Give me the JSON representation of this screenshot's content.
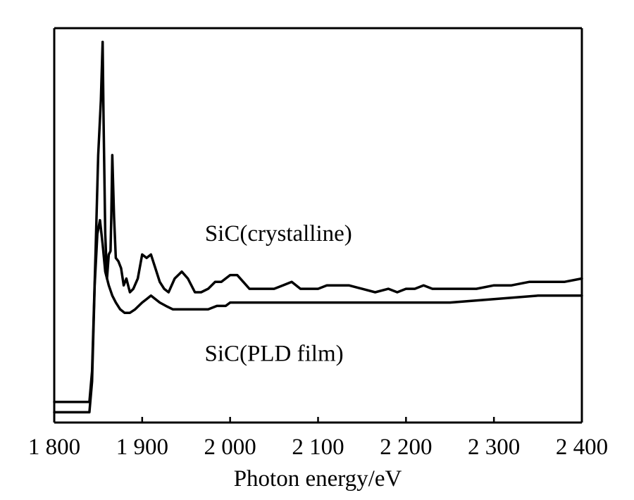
{
  "chart_data": {
    "type": "line",
    "xlabel": "Photon energy/eV",
    "ylabel": "",
    "xlim": [
      1800,
      2400
    ],
    "ylim": [
      0,
      1.15
    ],
    "xticks": [
      1800,
      1900,
      2000,
      2100,
      2200,
      2300,
      2400
    ],
    "xtick_labels": [
      "1 800",
      "1 900",
      "2 000",
      "2 100",
      "2 200",
      "2 300",
      "2 400"
    ],
    "grid": false,
    "legend": "none",
    "series": [
      {
        "name": "SiC(crystalline)",
        "color": "#000000",
        "x": [
          1800,
          1840,
          1843,
          1847,
          1850,
          1853,
          1855,
          1856,
          1858,
          1860,
          1862,
          1864,
          1865,
          1866,
          1868,
          1870,
          1873,
          1876,
          1879,
          1882,
          1886,
          1890,
          1895,
          1900,
          1905,
          1910,
          1915,
          1920,
          1925,
          1930,
          1937,
          1945,
          1952,
          1960,
          1967,
          1975,
          1983,
          1990,
          2000,
          2008,
          2015,
          2022,
          2030,
          2040,
          2050,
          2060,
          2070,
          2080,
          2090,
          2100,
          2110,
          2120,
          2135,
          2150,
          2165,
          2180,
          2190,
          2200,
          2210,
          2220,
          2230,
          2240,
          2260,
          2280,
          2300,
          2320,
          2340,
          2360,
          2380,
          2400
        ],
        "y": [
          0.06,
          0.06,
          0.15,
          0.5,
          0.78,
          0.94,
          1.11,
          0.9,
          0.55,
          0.42,
          0.49,
          0.5,
          0.61,
          0.78,
          0.6,
          0.48,
          0.47,
          0.45,
          0.4,
          0.42,
          0.38,
          0.39,
          0.42,
          0.49,
          0.48,
          0.49,
          0.45,
          0.41,
          0.39,
          0.38,
          0.42,
          0.44,
          0.42,
          0.38,
          0.38,
          0.39,
          0.41,
          0.41,
          0.43,
          0.43,
          0.41,
          0.39,
          0.39,
          0.39,
          0.39,
          0.4,
          0.41,
          0.39,
          0.39,
          0.39,
          0.4,
          0.4,
          0.4,
          0.39,
          0.38,
          0.39,
          0.38,
          0.39,
          0.39,
          0.4,
          0.39,
          0.39,
          0.39,
          0.39,
          0.4,
          0.4,
          0.41,
          0.41,
          0.41,
          0.42
        ]
      },
      {
        "name": "SiC(PLD film)",
        "color": "#000000",
        "x": [
          1800,
          1840,
          1843,
          1846,
          1849,
          1852,
          1855,
          1858,
          1862,
          1866,
          1870,
          1875,
          1880,
          1886,
          1892,
          1900,
          1905,
          1910,
          1915,
          1920,
          1927,
          1935,
          1945,
          1955,
          1965,
          1975,
          1985,
          1995,
          2000,
          2010,
          2020,
          2050,
          2100,
          2150,
          2200,
          2250,
          2300,
          2350,
          2400
        ],
        "y": [
          0.03,
          0.03,
          0.12,
          0.4,
          0.55,
          0.59,
          0.52,
          0.44,
          0.4,
          0.37,
          0.35,
          0.33,
          0.32,
          0.32,
          0.33,
          0.35,
          0.36,
          0.37,
          0.36,
          0.35,
          0.34,
          0.33,
          0.33,
          0.33,
          0.33,
          0.33,
          0.34,
          0.34,
          0.35,
          0.35,
          0.35,
          0.35,
          0.35,
          0.35,
          0.35,
          0.35,
          0.36,
          0.37,
          0.37
        ]
      }
    ],
    "annotations": [
      {
        "text": "SiC(crystalline)",
        "x": 2055,
        "y": 0.53
      },
      {
        "text": "SiC(PLD film)",
        "x": 2050,
        "y": 0.18
      }
    ]
  }
}
